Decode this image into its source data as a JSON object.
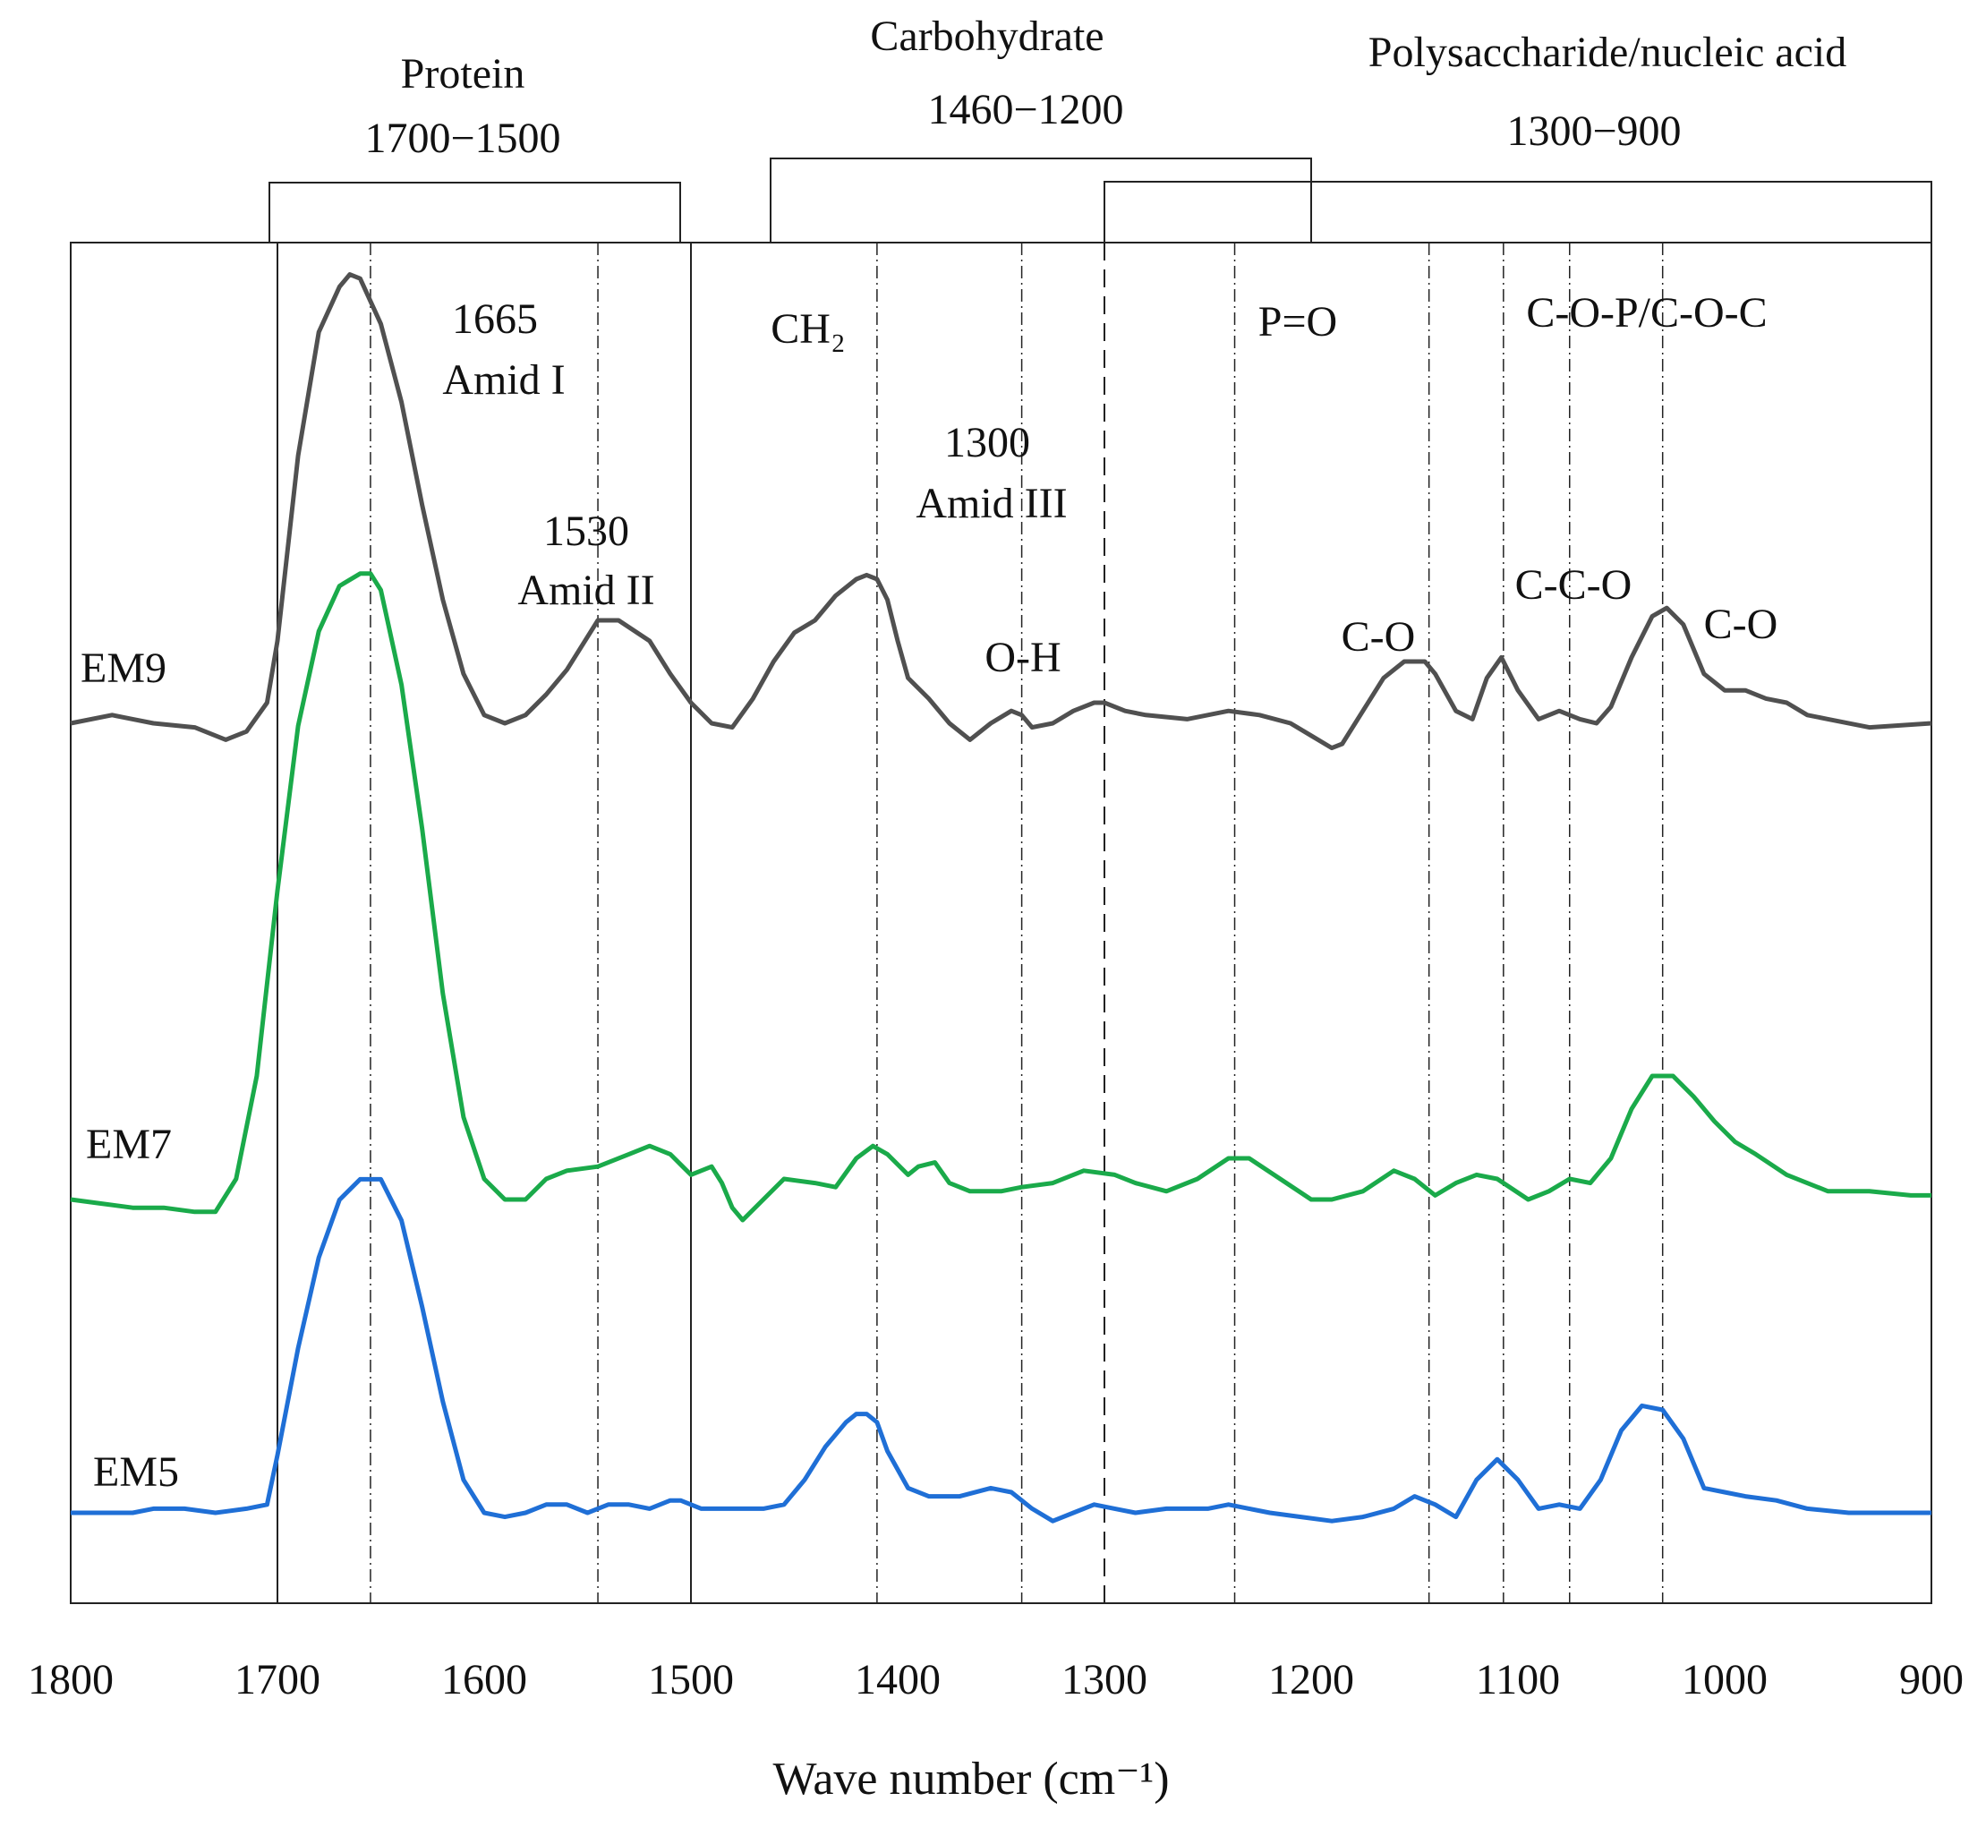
{
  "chart_data": {
    "type": "line",
    "title": "",
    "xlabel": "Wave number (cm⁻¹)",
    "ylabel": "",
    "xlim": [
      1800,
      900
    ],
    "x_reversed": true,
    "x_ticks": [
      "1800",
      "1700",
      "1600",
      "1500",
      "1400",
      "1300",
      "1200",
      "1100",
      "1000",
      "900"
    ],
    "grid": false,
    "y_offset_stacked": true,
    "series": [
      {
        "name": "EM9",
        "color": "#505050",
        "x": [
          1800,
          1780,
          1770,
          1760,
          1740,
          1725,
          1715,
          1705,
          1700,
          1690,
          1680,
          1670,
          1665,
          1660,
          1650,
          1640,
          1630,
          1620,
          1610,
          1600,
          1590,
          1580,
          1570,
          1560,
          1545,
          1535,
          1520,
          1510,
          1500,
          1490,
          1480,
          1470,
          1460,
          1450,
          1440,
          1430,
          1420,
          1415,
          1410,
          1405,
          1400,
          1395,
          1385,
          1375,
          1365,
          1355,
          1345,
          1340,
          1335,
          1325,
          1315,
          1305,
          1300,
          1290,
          1280,
          1260,
          1240,
          1225,
          1210,
          1200,
          1190,
          1185,
          1175,
          1165,
          1155,
          1145,
          1140,
          1130,
          1122,
          1115,
          1108,
          1100,
          1090,
          1080,
          1070,
          1062,
          1055,
          1045,
          1035,
          1028,
          1020,
          1010,
          1000,
          990,
          980,
          970,
          960,
          950,
          930,
          900
        ],
        "y": [
          0.0,
          0.02,
          0.01,
          0.0,
          -0.01,
          -0.04,
          -0.02,
          0.05,
          0.2,
          0.65,
          0.95,
          1.06,
          1.09,
          1.08,
          0.97,
          0.78,
          0.53,
          0.3,
          0.12,
          0.02,
          0.0,
          0.02,
          0.07,
          0.13,
          0.25,
          0.25,
          0.2,
          0.12,
          0.05,
          0.0,
          -0.01,
          0.06,
          0.15,
          0.22,
          0.25,
          0.31,
          0.35,
          0.36,
          0.35,
          0.3,
          0.2,
          0.11,
          0.06,
          0.0,
          -0.04,
          0.0,
          0.03,
          0.02,
          -0.01,
          0.0,
          0.03,
          0.05,
          0.05,
          0.03,
          0.02,
          0.01,
          0.03,
          0.02,
          0.0,
          -0.03,
          -0.06,
          -0.05,
          0.03,
          0.11,
          0.15,
          0.15,
          0.12,
          0.03,
          0.01,
          0.11,
          0.16,
          0.08,
          0.01,
          0.03,
          0.01,
          0.0,
          0.04,
          0.16,
          0.26,
          0.28,
          0.24,
          0.12,
          0.08,
          0.08,
          0.06,
          0.05,
          0.02,
          0.01,
          -0.01,
          0.0
        ]
      },
      {
        "name": "EM7",
        "color": "#1aaa4a",
        "x": [
          1800,
          1785,
          1770,
          1755,
          1740,
          1730,
          1720,
          1710,
          1700,
          1690,
          1680,
          1670,
          1660,
          1655,
          1650,
          1640,
          1630,
          1620,
          1610,
          1600,
          1590,
          1580,
          1570,
          1560,
          1545,
          1530,
          1520,
          1510,
          1500,
          1490,
          1485,
          1480,
          1475,
          1465,
          1455,
          1440,
          1430,
          1420,
          1412,
          1405,
          1395,
          1390,
          1382,
          1375,
          1365,
          1350,
          1340,
          1325,
          1310,
          1295,
          1285,
          1270,
          1255,
          1240,
          1230,
          1215,
          1200,
          1190,
          1175,
          1160,
          1150,
          1140,
          1130,
          1120,
          1110,
          1095,
          1085,
          1075,
          1065,
          1055,
          1045,
          1035,
          1025,
          1015,
          1005,
          995,
          985,
          970,
          950,
          930,
          910,
          900
        ],
        "y": [
          0.0,
          -0.01,
          -0.02,
          -0.02,
          -0.03,
          -0.03,
          0.05,
          0.3,
          0.75,
          1.15,
          1.38,
          1.49,
          1.52,
          1.52,
          1.48,
          1.25,
          0.9,
          0.5,
          0.2,
          0.05,
          0.0,
          0.0,
          0.05,
          0.07,
          0.08,
          0.11,
          0.13,
          0.11,
          0.06,
          0.08,
          0.04,
          -0.02,
          -0.05,
          0.0,
          0.05,
          0.04,
          0.03,
          0.1,
          0.13,
          0.11,
          0.06,
          0.08,
          0.09,
          0.04,
          0.02,
          0.02,
          0.03,
          0.04,
          0.07,
          0.06,
          0.04,
          0.02,
          0.05,
          0.1,
          0.1,
          0.05,
          0.0,
          0.0,
          0.02,
          0.07,
          0.05,
          0.01,
          0.04,
          0.06,
          0.05,
          0.0,
          0.02,
          0.05,
          0.04,
          0.1,
          0.22,
          0.3,
          0.3,
          0.25,
          0.19,
          0.14,
          0.11,
          0.06,
          0.02,
          0.02,
          0.01,
          0.01
        ]
      },
      {
        "name": "EM5",
        "color": "#1f6fd6",
        "x": [
          1800,
          1785,
          1770,
          1760,
          1745,
          1730,
          1715,
          1705,
          1700,
          1690,
          1680,
          1670,
          1660,
          1650,
          1640,
          1630,
          1620,
          1610,
          1600,
          1590,
          1580,
          1570,
          1560,
          1550,
          1540,
          1530,
          1520,
          1510,
          1505,
          1495,
          1480,
          1465,
          1455,
          1445,
          1435,
          1425,
          1420,
          1415,
          1410,
          1405,
          1395,
          1385,
          1370,
          1355,
          1345,
          1335,
          1325,
          1315,
          1305,
          1295,
          1285,
          1270,
          1250,
          1240,
          1230,
          1220,
          1205,
          1190,
          1175,
          1160,
          1150,
          1140,
          1130,
          1120,
          1110,
          1100,
          1090,
          1080,
          1070,
          1060,
          1050,
          1040,
          1030,
          1020,
          1010,
          1000,
          990,
          975,
          960,
          940,
          920,
          900
        ],
        "y": [
          0.0,
          0.0,
          0.0,
          0.01,
          0.01,
          0.0,
          0.01,
          0.02,
          0.14,
          0.4,
          0.62,
          0.76,
          0.81,
          0.81,
          0.71,
          0.5,
          0.27,
          0.08,
          0.0,
          -0.01,
          0.0,
          0.02,
          0.02,
          0.0,
          0.02,
          0.02,
          0.01,
          0.03,
          0.03,
          0.01,
          0.01,
          0.01,
          0.02,
          0.08,
          0.16,
          0.22,
          0.24,
          0.24,
          0.22,
          0.15,
          0.06,
          0.04,
          0.04,
          0.06,
          0.05,
          0.01,
          -0.02,
          0.0,
          0.02,
          0.01,
          0.0,
          0.01,
          0.01,
          0.02,
          0.01,
          0.0,
          -0.01,
          -0.02,
          -0.01,
          0.01,
          0.04,
          0.02,
          -0.01,
          0.08,
          0.13,
          0.08,
          0.01,
          0.02,
          0.01,
          0.08,
          0.2,
          0.26,
          0.25,
          0.18,
          0.06,
          0.05,
          0.04,
          0.03,
          0.01,
          0.0,
          0.0,
          0.0
        ]
      }
    ],
    "region_brackets": [
      {
        "title": "Protein",
        "range_label": "1700−1500",
        "from": 1700,
        "to": 1500
      },
      {
        "title": "Carbohydrate",
        "range_label": "1460−1200",
        "from": 1460,
        "to": 1200
      },
      {
        "title": "Polysaccharide/nucleic acid",
        "range_label": "1300−900",
        "from": 1300,
        "to": 900
      }
    ],
    "reference_lines": [
      {
        "x": 1700,
        "style": "solid"
      },
      {
        "x": 1500,
        "style": "solid"
      },
      {
        "x": 1655,
        "style": "dashdot"
      },
      {
        "x": 1545,
        "style": "dashdot"
      },
      {
        "x": 1410,
        "style": "dashdot"
      },
      {
        "x": 1340,
        "style": "dashdot"
      },
      {
        "x": 1300,
        "style": "dashed"
      },
      {
        "x": 1237,
        "style": "dashdot"
      },
      {
        "x": 1143,
        "style": "dashdot"
      },
      {
        "x": 1107,
        "style": "dashdot"
      },
      {
        "x": 1075,
        "style": "dashdot"
      },
      {
        "x": 1030,
        "style": "dashdot"
      }
    ],
    "annotations": [
      "1665",
      "Amid I",
      "1530",
      "Amid II",
      "CH₂",
      "1300",
      "Amid III",
      "O-H",
      "P=O",
      "C-O",
      "C-C-O",
      "C-O-P/C-O-C",
      "C-O"
    ]
  }
}
